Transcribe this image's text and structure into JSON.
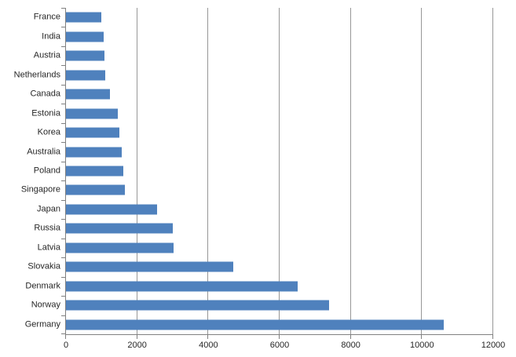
{
  "chart_data": {
    "type": "bar",
    "orientation": "horizontal",
    "title": "",
    "xlabel": "",
    "ylabel": "",
    "categories": [
      "France",
      "India",
      "Austria",
      "Netherlands",
      "Canada",
      "Estonia",
      "Korea",
      "Australia",
      "Poland",
      "Singapore",
      "Japan",
      "Russia",
      "Latvia",
      "Slovakia",
      "Denmark",
      "Norway",
      "Germany"
    ],
    "values": [
      1000,
      1050,
      1070,
      1100,
      1230,
      1450,
      1510,
      1570,
      1620,
      1650,
      2560,
      3000,
      3020,
      4700,
      6500,
      7400,
      10620
    ],
    "xlim": [
      0,
      12000
    ],
    "x_ticks": [
      0,
      2000,
      4000,
      6000,
      8000,
      10000,
      12000
    ],
    "grid": true,
    "legend": "none",
    "colors": {
      "bar": "#4F81BD",
      "axis": "#808080",
      "gridline": "#979797",
      "text": "#262626",
      "background": "#ffffff"
    }
  }
}
